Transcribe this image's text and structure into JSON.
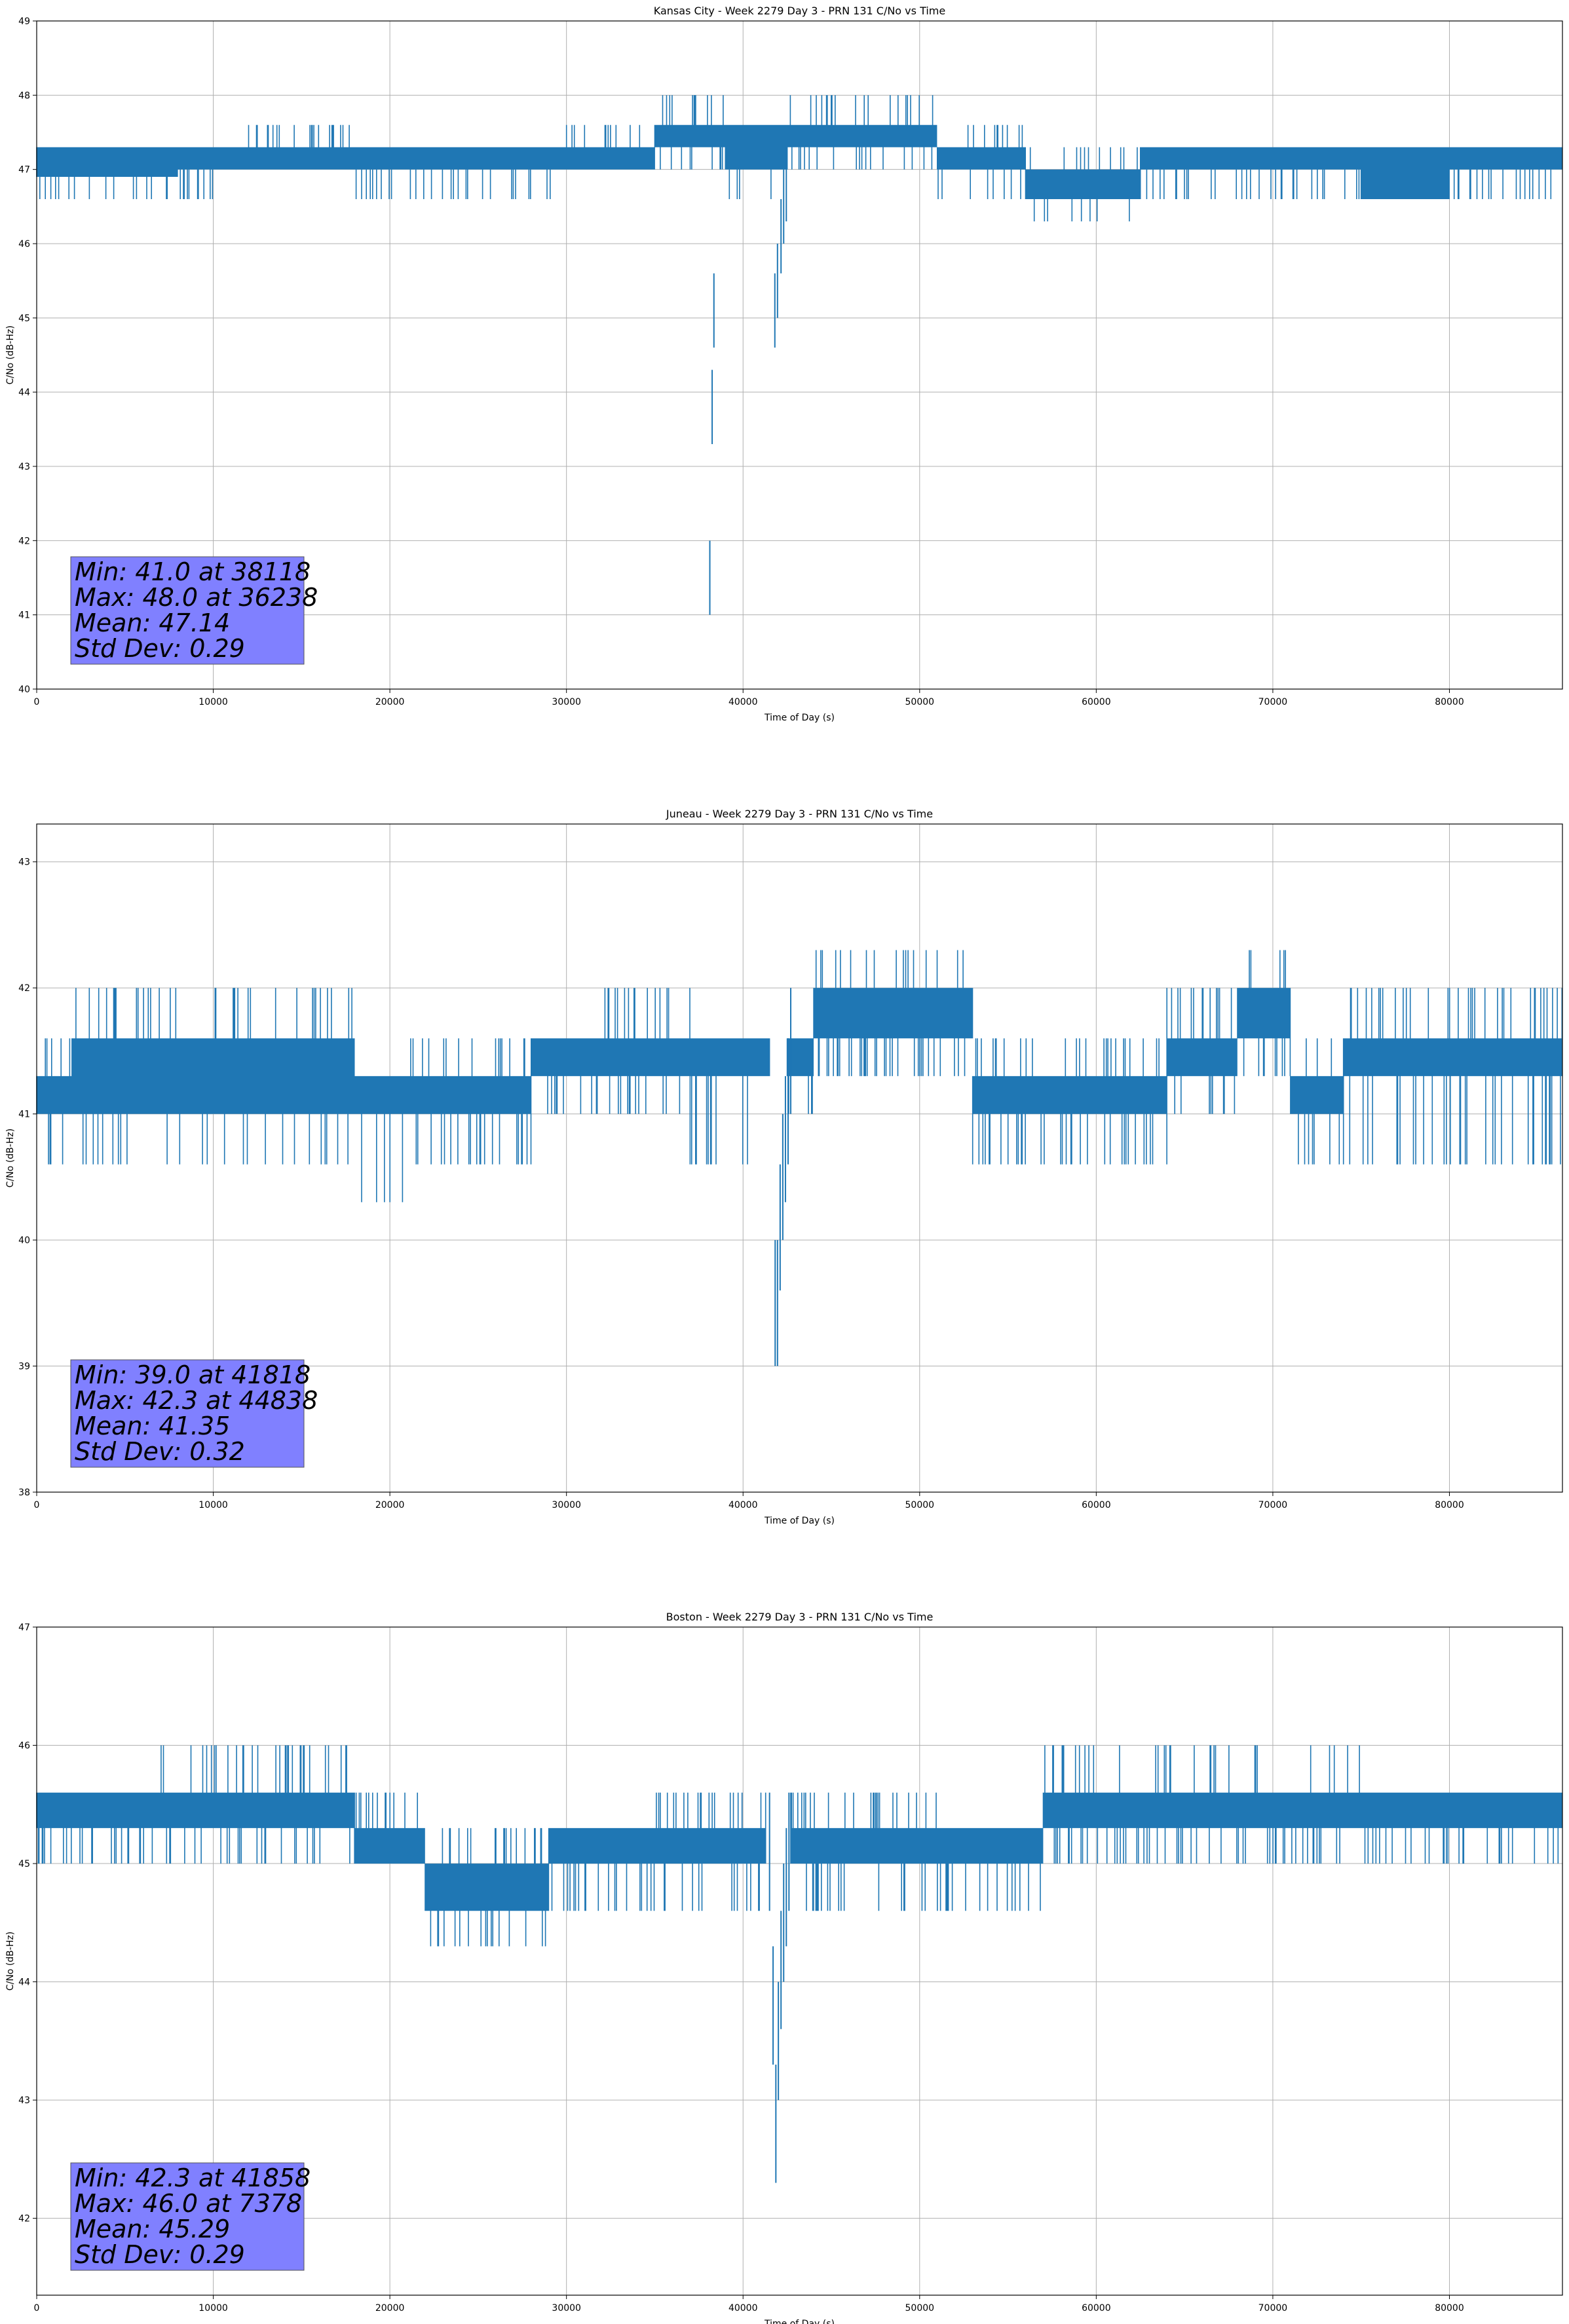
{
  "chart_data": [
    {
      "type": "line",
      "title": "Kansas City - Week 2279 Day 3 - PRN 131 C/No vs Time",
      "xlabel": "Time of Day (s)",
      "ylabel": "C/No (dB-Hz)",
      "xlim": [
        0,
        86400
      ],
      "ylim": [
        40,
        49
      ],
      "xticks": [
        "0",
        "10000",
        "20000",
        "30000",
        "40000",
        "50000",
        "60000",
        "70000",
        "80000"
      ],
      "yticks": [
        "40",
        "41",
        "42",
        "43",
        "44",
        "45",
        "46",
        "47",
        "48",
        "49"
      ],
      "grid": true,
      "color": "#1f77b4",
      "stats": [
        "Min: 41.0 at 38118",
        "Max: 48.0 at 36238",
        "Mean: 47.14",
        "Std Dev: 0.29"
      ],
      "bands": [
        {
          "x": [
            0,
            8000
          ],
          "lo": 46.6,
          "hi": 47.3,
          "dense": [
            46.9,
            47.3
          ]
        },
        {
          "x": [
            8000,
            12000
          ],
          "lo": 46.6,
          "hi": 47.3,
          "dense": [
            47.0,
            47.3
          ]
        },
        {
          "x": [
            12000,
            18000
          ],
          "lo": 47.0,
          "hi": 47.6,
          "dense": [
            47.0,
            47.3
          ]
        },
        {
          "x": [
            18000,
            22000
          ],
          "lo": 46.6,
          "hi": 47.3,
          "dense": [
            47.0,
            47.3
          ]
        },
        {
          "x": [
            22000,
            30000
          ],
          "lo": 46.6,
          "hi": 47.3,
          "dense": [
            47.0,
            47.3
          ]
        },
        {
          "x": [
            30000,
            35000
          ],
          "lo": 47.0,
          "hi": 47.6,
          "dense": [
            47.0,
            47.3
          ]
        },
        {
          "x": [
            35000,
            39000
          ],
          "lo": 47.0,
          "hi": 48.0,
          "dense": [
            47.3,
            47.6
          ]
        },
        {
          "x": [
            39000,
            42500
          ],
          "lo": 46.6,
          "hi": 47.6,
          "dense": [
            47.0,
            47.6
          ]
        },
        {
          "x": [
            42500,
            51000
          ],
          "lo": 47.0,
          "hi": 48.0,
          "dense": [
            47.3,
            47.6
          ]
        },
        {
          "x": [
            51000,
            56000
          ],
          "lo": 46.6,
          "hi": 47.6,
          "dense": [
            47.0,
            47.3
          ]
        },
        {
          "x": [
            56000,
            62500
          ],
          "lo": 46.3,
          "hi": 47.3,
          "dense": [
            46.6,
            47.0
          ]
        },
        {
          "x": [
            62500,
            75000
          ],
          "lo": 46.6,
          "hi": 47.3,
          "dense": [
            47.0,
            47.3
          ]
        },
        {
          "x": [
            75000,
            80000
          ],
          "lo": 46.6,
          "hi": 47.3,
          "dense": [
            46.6,
            47.3
          ]
        },
        {
          "x": [
            80000,
            86400
          ],
          "lo": 46.6,
          "hi": 47.3,
          "dense": [
            47.0,
            47.3
          ]
        }
      ],
      "dips": [
        {
          "x": 38118,
          "y": 41.0
        },
        {
          "x": 38250,
          "y": 43.3
        },
        {
          "x": 38350,
          "y": 44.6
        },
        {
          "x": 41800,
          "y": 44.6
        },
        {
          "x": 41950,
          "y": 45.0
        },
        {
          "x": 42150,
          "y": 45.6
        },
        {
          "x": 42300,
          "y": 46.0
        },
        {
          "x": 42450,
          "y": 46.3
        }
      ]
    },
    {
      "type": "line",
      "title": "Juneau - Week 2279 Day 3 - PRN 131 C/No vs Time",
      "xlabel": "Time of Day (s)",
      "ylabel": "C/No (dB-Hz)",
      "xlim": [
        0,
        86400
      ],
      "ylim": [
        38,
        43.3
      ],
      "xticks": [
        "0",
        "10000",
        "20000",
        "30000",
        "40000",
        "50000",
        "60000",
        "70000",
        "80000"
      ],
      "yticks": [
        "38",
        "39",
        "40",
        "41",
        "42",
        "43"
      ],
      "grid": true,
      "color": "#1f77b4",
      "stats": [
        "Min: 39.0 at 41818",
        "Max: 42.3 at 44838",
        "Mean: 41.35",
        "Std Dev: 0.32"
      ],
      "bands": [
        {
          "x": [
            0,
            2000
          ],
          "lo": 40.6,
          "hi": 41.6,
          "dense": [
            41.0,
            41.3
          ]
        },
        {
          "x": [
            2000,
            18000
          ],
          "lo": 40.6,
          "hi": 42.0,
          "dense": [
            41.0,
            41.6
          ]
        },
        {
          "x": [
            18000,
            21000
          ],
          "lo": 40.3,
          "hi": 41.3,
          "dense": [
            41.0,
            41.3
          ]
        },
        {
          "x": [
            21000,
            28000
          ],
          "lo": 40.6,
          "hi": 41.6,
          "dense": [
            41.0,
            41.3
          ]
        },
        {
          "x": [
            28000,
            32000
          ],
          "lo": 41.0,
          "hi": 41.6,
          "dense": [
            41.3,
            41.6
          ]
        },
        {
          "x": [
            32000,
            37000
          ],
          "lo": 41.0,
          "hi": 42.0,
          "dense": [
            41.3,
            41.6
          ]
        },
        {
          "x": [
            37000,
            41500
          ],
          "lo": 40.6,
          "hi": 41.6,
          "dense": [
            41.3,
            41.6
          ]
        },
        {
          "x": [
            42500,
            44000
          ],
          "lo": 41.0,
          "hi": 41.6,
          "dense": [
            41.3,
            41.6
          ]
        },
        {
          "x": [
            44000,
            53000
          ],
          "lo": 41.3,
          "hi": 42.3,
          "dense": [
            41.6,
            42.0
          ]
        },
        {
          "x": [
            53000,
            64000
          ],
          "lo": 40.6,
          "hi": 41.6,
          "dense": [
            41.0,
            41.3
          ]
        },
        {
          "x": [
            64000,
            68000
          ],
          "lo": 41.0,
          "hi": 42.0,
          "dense": [
            41.3,
            41.6
          ]
        },
        {
          "x": [
            68000,
            71000
          ],
          "lo": 41.3,
          "hi": 42.3,
          "dense": [
            41.6,
            42.0
          ]
        },
        {
          "x": [
            71000,
            74000
          ],
          "lo": 40.6,
          "hi": 41.6,
          "dense": [
            41.0,
            41.3
          ]
        },
        {
          "x": [
            74000,
            86400
          ],
          "lo": 40.6,
          "hi": 42.0,
          "dense": [
            41.3,
            41.6
          ]
        }
      ],
      "dips": [
        {
          "x": 41818,
          "y": 39.0
        },
        {
          "x": 41950,
          "y": 39.0
        },
        {
          "x": 42100,
          "y": 39.6
        },
        {
          "x": 42250,
          "y": 40.0
        },
        {
          "x": 42400,
          "y": 40.3
        },
        {
          "x": 42550,
          "y": 40.6
        },
        {
          "x": 42700,
          "y": 41.0
        }
      ]
    },
    {
      "type": "line",
      "title": "Boston - Week 2279 Day 3 - PRN 131 C/No vs Time",
      "xlabel": "Time of Day (s)",
      "ylabel": "C/No (dB-Hz)",
      "xlim": [
        0,
        86400
      ],
      "ylim": [
        41.35,
        47
      ],
      "xticks": [
        "0",
        "10000",
        "20000",
        "30000",
        "40000",
        "50000",
        "60000",
        "70000",
        "80000"
      ],
      "yticks": [
        "42",
        "43",
        "44",
        "45",
        "46",
        "47"
      ],
      "grid": true,
      "color": "#1f77b4",
      "stats": [
        "Min: 42.3 at 41858",
        "Max: 46.0 at 7378",
        "Mean: 45.29",
        "Std Dev: 0.29"
      ],
      "bands": [
        {
          "x": [
            0,
            7000
          ],
          "lo": 45.0,
          "hi": 45.6,
          "dense": [
            45.3,
            45.6
          ]
        },
        {
          "x": [
            7000,
            18000
          ],
          "lo": 45.0,
          "hi": 46.0,
          "dense": [
            45.3,
            45.6
          ]
        },
        {
          "x": [
            18000,
            22000
          ],
          "lo": 45.0,
          "hi": 45.6,
          "dense": [
            45.0,
            45.3
          ]
        },
        {
          "x": [
            22000,
            29000
          ],
          "lo": 44.3,
          "hi": 45.3,
          "dense": [
            44.6,
            45.0
          ]
        },
        {
          "x": [
            29000,
            35000
          ],
          "lo": 44.6,
          "hi": 45.3,
          "dense": [
            45.0,
            45.3
          ]
        },
        {
          "x": [
            35000,
            41300
          ],
          "lo": 44.6,
          "hi": 45.6,
          "dense": [
            45.0,
            45.3
          ]
        },
        {
          "x": [
            42700,
            51000
          ],
          "lo": 44.6,
          "hi": 45.6,
          "dense": [
            45.0,
            45.3
          ]
        },
        {
          "x": [
            51000,
            57000
          ],
          "lo": 44.6,
          "hi": 45.3,
          "dense": [
            45.0,
            45.3
          ]
        },
        {
          "x": [
            57000,
            66000
          ],
          "lo": 45.0,
          "hi": 46.0,
          "dense": [
            45.3,
            45.6
          ]
        },
        {
          "x": [
            66000,
            76000
          ],
          "lo": 45.0,
          "hi": 46.0,
          "dense": [
            45.3,
            45.6
          ]
        },
        {
          "x": [
            76000,
            86400
          ],
          "lo": 45.0,
          "hi": 45.6,
          "dense": [
            45.3,
            45.6
          ]
        }
      ],
      "dips": [
        {
          "x": 41500,
          "y": 44.6
        },
        {
          "x": 41700,
          "y": 43.3
        },
        {
          "x": 41858,
          "y": 42.3
        },
        {
          "x": 42000,
          "y": 43.0
        },
        {
          "x": 42150,
          "y": 43.6
        },
        {
          "x": 42300,
          "y": 44.0
        },
        {
          "x": 42450,
          "y": 44.3
        },
        {
          "x": 42600,
          "y": 44.6
        }
      ]
    }
  ]
}
